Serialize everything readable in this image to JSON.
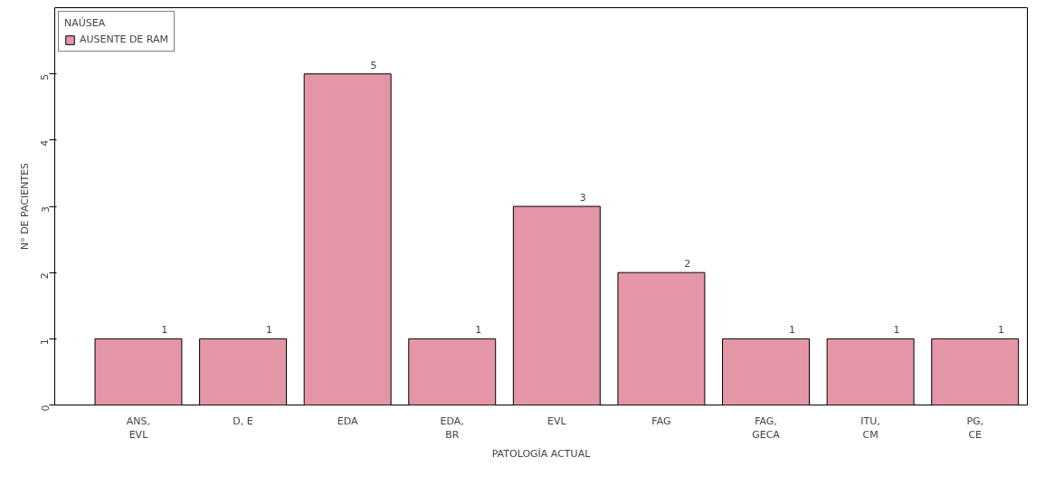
{
  "chart_data": {
    "type": "bar",
    "xlabel": "PATOLOGÍA ACTUAL",
    "ylabel": "N° DE PACIENTES",
    "legend_title": "NAÚSEA",
    "categories": [
      "ANS,\nEVL",
      "D, E",
      "EDA",
      "EDA,\nBR",
      "EVL",
      "FAG",
      "FAG,\nGECA",
      "ITU,\nCM",
      "PG,\nCE"
    ],
    "series": [
      {
        "name": "AUSENTE DE RAM",
        "color": "#e496a6",
        "values": [
          1,
          1,
          5,
          1,
          3,
          2,
          1,
          1,
          1
        ]
      }
    ],
    "ylim": [
      0,
      6
    ],
    "yticks": [
      0,
      1,
      2,
      3,
      4,
      5
    ],
    "data_labels": true,
    "grid": false,
    "legend": "top left"
  }
}
